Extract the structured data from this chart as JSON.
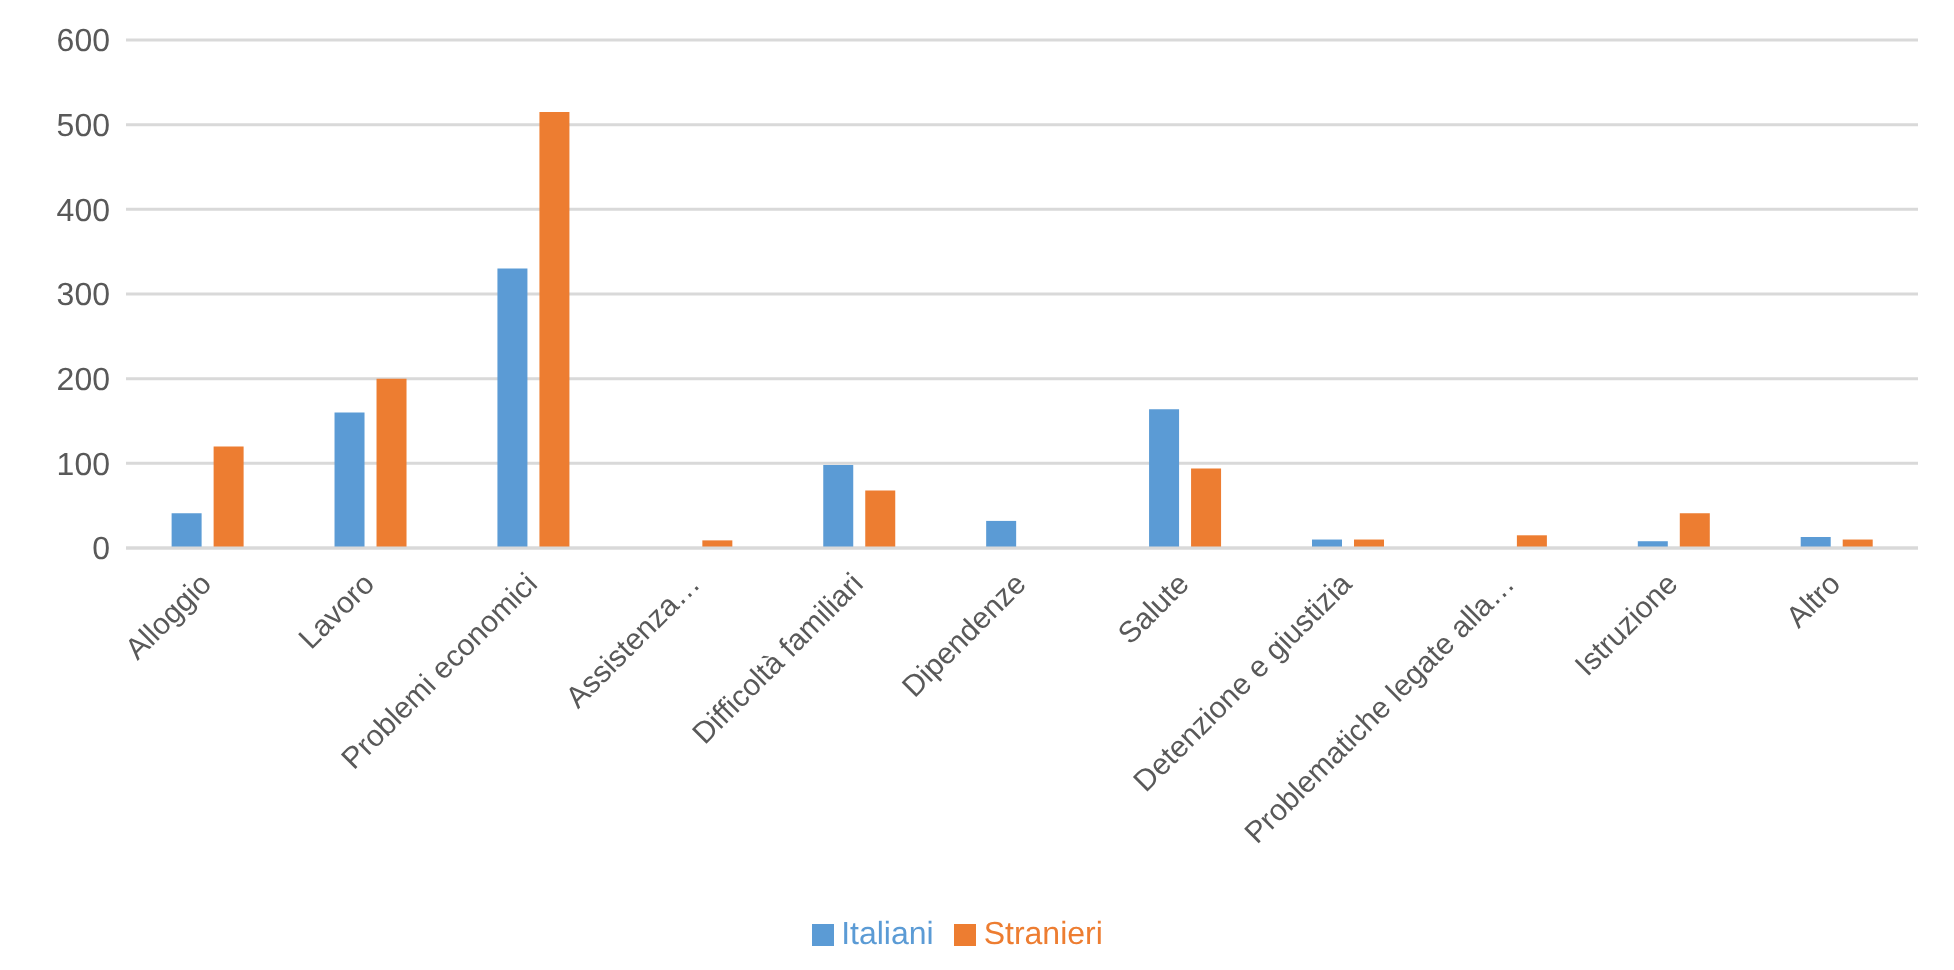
{
  "chart_data": {
    "type": "bar",
    "categories": [
      "Alloggio",
      "Lavoro",
      "Problemi economici",
      "Assistenza…",
      "Difficoltà familiari",
      "Dipendenze",
      "Salute",
      "Detenzione e giustizia",
      "Problematiche legate alla…",
      "Istruzione",
      "Altro"
    ],
    "series": [
      {
        "name": "Italiani",
        "color": "#5b9bd5",
        "values": [
          41,
          160,
          330,
          null,
          98,
          32,
          164,
          10,
          0,
          8,
          13
        ]
      },
      {
        "name": "Stranieri",
        "color": "#ed7d31",
        "values": [
          120,
          200,
          515,
          9,
          68,
          null,
          94,
          10,
          15,
          41,
          10
        ]
      }
    ],
    "ylim": [
      0,
      600
    ],
    "yticks": [
      0,
      100,
      200,
      300,
      400,
      500,
      600
    ],
    "grid": "y",
    "legend": "bottom"
  }
}
